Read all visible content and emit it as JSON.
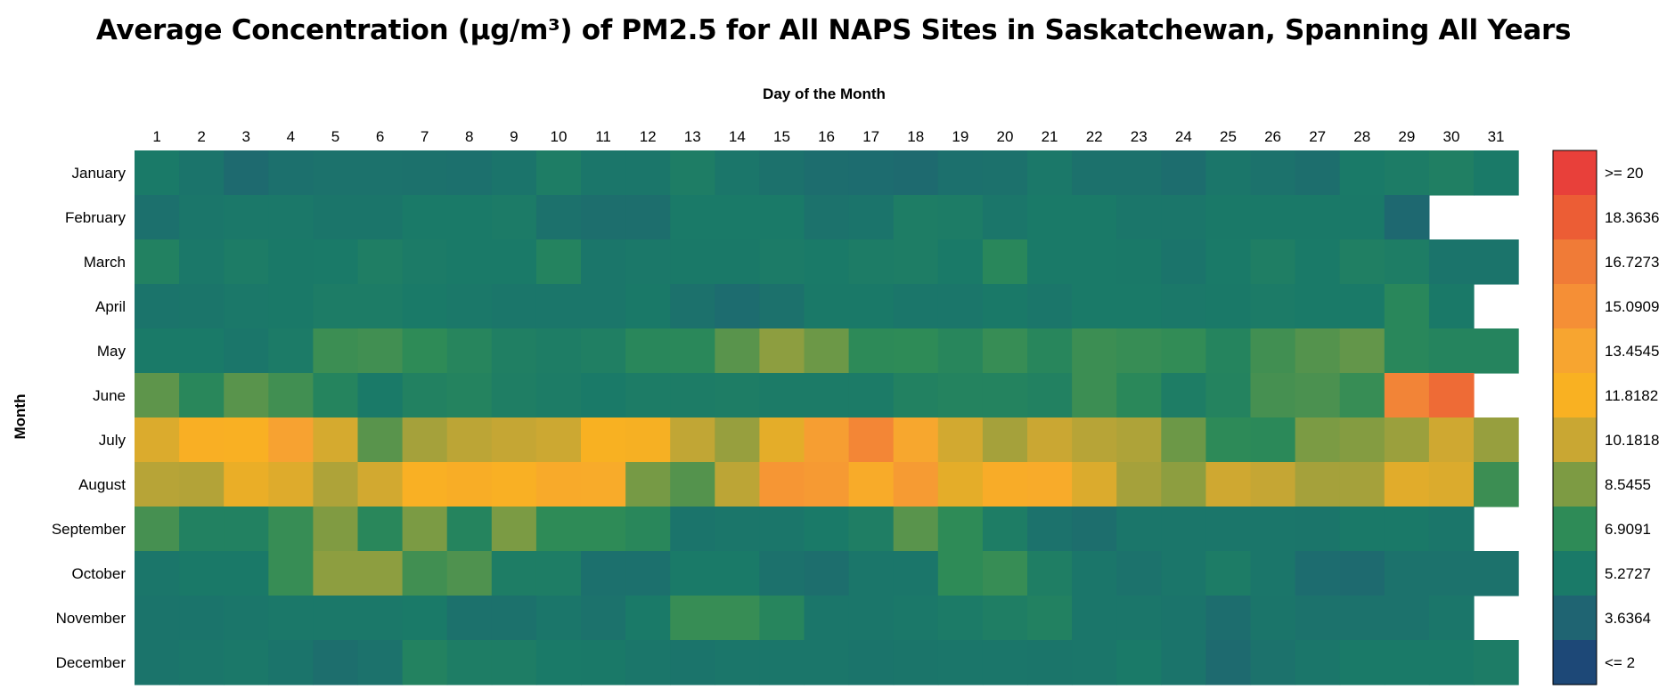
{
  "chart_data": {
    "type": "heatmap",
    "title": "Average Concentration (µg/m³) of PM2.5 for All NAPS Sites in Saskatchewan, Spanning All Years",
    "xlabel": "Day of the Month",
    "ylabel": "Month",
    "x": [
      "1",
      "2",
      "3",
      "4",
      "5",
      "6",
      "7",
      "8",
      "9",
      "10",
      "11",
      "12",
      "13",
      "14",
      "15",
      "16",
      "17",
      "18",
      "19",
      "20",
      "21",
      "22",
      "23",
      "24",
      "25",
      "26",
      "27",
      "28",
      "29",
      "30",
      "31"
    ],
    "y": [
      "January",
      "February",
      "March",
      "April",
      "May",
      "June",
      "July",
      "August",
      "September",
      "October",
      "November",
      "December"
    ],
    "values": [
      [
        5.3,
        4.8,
        4.1,
        4.5,
        4.7,
        4.7,
        4.6,
        4.5,
        4.8,
        5.6,
        5.0,
        5.0,
        5.6,
        5.0,
        4.6,
        4.3,
        4.2,
        4.1,
        4.5,
        4.6,
        5.1,
        4.6,
        4.6,
        4.3,
        5.0,
        4.7,
        4.4,
        5.3,
        5.5,
        5.8,
        5.3
      ],
      [
        4.5,
        5.0,
        5.1,
        5.1,
        4.9,
        4.9,
        5.3,
        5.3,
        5.4,
        4.6,
        4.4,
        4.4,
        5.3,
        5.3,
        5.3,
        4.7,
        4.8,
        5.6,
        5.5,
        5.0,
        5.3,
        5.3,
        5.0,
        5.0,
        5.2,
        5.2,
        5.2,
        5.2,
        3.9,
        null,
        null
      ],
      [
        5.9,
        5.1,
        5.5,
        5.2,
        5.3,
        5.7,
        5.4,
        5.3,
        5.3,
        6.1,
        5.0,
        5.1,
        5.2,
        5.2,
        5.4,
        5.3,
        5.5,
        5.6,
        5.3,
        6.5,
        5.3,
        5.3,
        5.2,
        4.8,
        5.3,
        5.7,
        5.3,
        5.8,
        5.6,
        4.8,
        4.8
      ],
      [
        4.8,
        4.9,
        5.1,
        5.2,
        5.5,
        5.5,
        5.3,
        5.1,
        5.0,
        5.0,
        5.0,
        5.2,
        4.6,
        4.2,
        4.6,
        5.2,
        5.2,
        5.0,
        5.0,
        5.2,
        5.0,
        5.3,
        5.3,
        5.1,
        5.2,
        5.4,
        5.3,
        5.3,
        6.5,
        5.2,
        null
      ],
      [
        5.3,
        5.3,
        5.0,
        5.4,
        7.2,
        7.3,
        6.9,
        6.3,
        5.8,
        5.6,
        5.8,
        6.5,
        6.6,
        7.8,
        8.9,
        8.2,
        6.8,
        6.9,
        6.4,
        7.1,
        6.4,
        7.2,
        7.1,
        7.0,
        6.2,
        7.3,
        7.7,
        8.0,
        6.5,
        6.2,
        6.2
      ],
      [
        7.9,
        6.5,
        7.8,
        7.3,
        6.2,
        5.3,
        5.9,
        6.1,
        5.7,
        5.5,
        5.3,
        5.5,
        5.5,
        5.6,
        5.4,
        5.4,
        5.4,
        5.9,
        6.1,
        6.1,
        5.9,
        7.2,
        6.6,
        5.6,
        6.1,
        7.4,
        7.5,
        7.1,
        16.0,
        17.6,
        null
      ],
      [
        10.8,
        12.1,
        11.9,
        13.7,
        10.6,
        7.8,
        9.4,
        9.9,
        10.1,
        10.3,
        11.8,
        11.7,
        10.0,
        9.1,
        11.1,
        14.0,
        15.8,
        13.2,
        10.5,
        9.4,
        10.2,
        9.8,
        9.6,
        8.2,
        6.8,
        6.7,
        8.5,
        8.7,
        9.2,
        10.4,
        9.1
      ],
      [
        9.8,
        9.7,
        11.3,
        10.9,
        9.6,
        10.5,
        12.0,
        12.3,
        12.0,
        12.8,
        12.7,
        8.4,
        7.7,
        9.9,
        14.6,
        14.3,
        12.6,
        14.2,
        11.1,
        12.5,
        12.7,
        10.8,
        9.4,
        8.9,
        10.4,
        10.1,
        9.4,
        9.4,
        11.0,
        10.8,
        7.2
      ],
      [
        7.4,
        5.9,
        5.9,
        7.1,
        8.6,
        6.5,
        8.5,
        6.2,
        8.5,
        6.9,
        6.9,
        6.5,
        4.8,
        5.0,
        5.0,
        5.3,
        5.7,
        7.8,
        6.9,
        5.6,
        4.7,
        4.4,
        5.0,
        5.0,
        5.0,
        5.0,
        4.9,
        5.2,
        5.2,
        5.0,
        null
      ],
      [
        5.0,
        5.2,
        5.2,
        7.1,
        8.9,
        8.9,
        7.3,
        7.6,
        5.6,
        5.6,
        4.5,
        4.5,
        5.3,
        5.3,
        4.6,
        4.4,
        5.0,
        5.0,
        6.9,
        7.1,
        5.7,
        5.0,
        4.7,
        5.0,
        5.5,
        5.0,
        4.2,
        4.1,
        4.7,
        4.7,
        4.7
      ],
      [
        4.8,
        4.8,
        5.0,
        5.1,
        5.1,
        5.1,
        5.3,
        4.6,
        4.6,
        5.0,
        4.7,
        5.3,
        7.1,
        7.1,
        6.3,
        5.0,
        5.0,
        5.1,
        5.4,
        5.7,
        5.9,
        5.0,
        5.0,
        4.8,
        4.3,
        4.9,
        4.7,
        4.7,
        4.7,
        5.0,
        null
      ],
      [
        4.8,
        5.0,
        5.1,
        4.8,
        4.4,
        4.7,
        6.0,
        5.6,
        5.6,
        5.3,
        5.2,
        5.0,
        4.8,
        5.0,
        5.0,
        5.0,
        4.8,
        4.9,
        5.0,
        5.0,
        4.9,
        5.0,
        5.3,
        4.8,
        4.1,
        4.7,
        5.0,
        5.3,
        5.3,
        5.3,
        5.5
      ]
    ],
    "colorbar": {
      "labels": [
        ">= 20",
        "18.3636",
        "16.7273",
        "15.0909",
        "13.4545",
        "11.8182",
        "10.1818",
        "8.5455",
        "6.9091",
        "5.2727",
        "3.6364",
        "<= 2"
      ],
      "colors": [
        "#e8403a",
        "#ec5d35",
        "#f07b37",
        "#f58f36",
        "#f7a530",
        "#f9b122",
        "#c9a733",
        "#7d9b43",
        "#2e8b57",
        "#1a7a68",
        "#1f6472",
        "#1d4877"
      ]
    }
  }
}
